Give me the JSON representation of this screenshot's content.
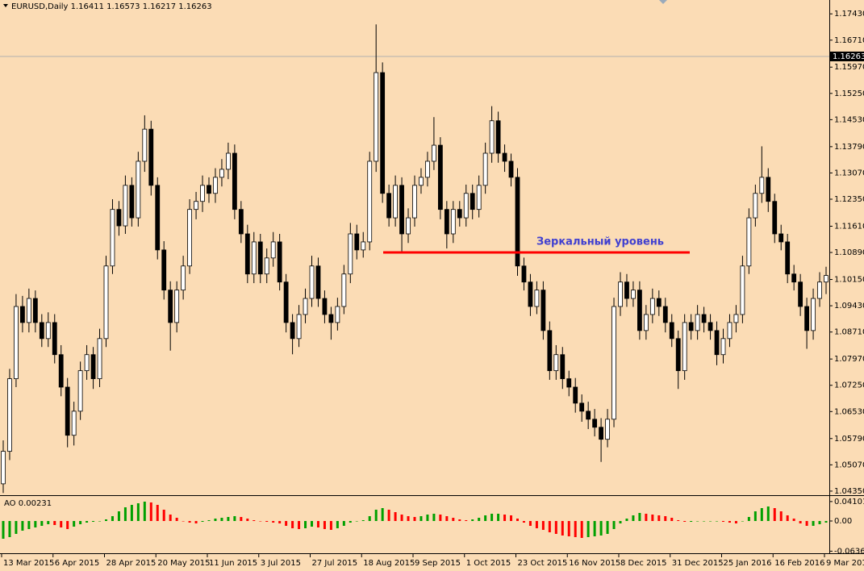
{
  "chart_data": {
    "type": "candlestick",
    "symbol": "EURUSD,Daily",
    "header_values": [
      1.16411,
      1.16573,
      1.16217,
      1.16263
    ],
    "current_price": 1.16263,
    "background": "#fbdcb5",
    "candle_color": "#000000",
    "bull_fill": "#ffffff",
    "ylim": [
      1.0426,
      1.1781
    ],
    "yticks": [
      {
        "value": 1.1743,
        "label": "1.17430"
      },
      {
        "value": 1.1671,
        "label": "1.16710"
      },
      {
        "value": 1.1597,
        "label": "1.15970"
      },
      {
        "value": 1.1525,
        "label": "1.15250"
      },
      {
        "value": 1.1453,
        "label": "1.14530"
      },
      {
        "value": 1.1379,
        "label": "1.13790"
      },
      {
        "value": 1.1307,
        "label": "1.13070"
      },
      {
        "value": 1.1235,
        "label": "1.12350"
      },
      {
        "value": 1.1161,
        "label": "1.11610"
      },
      {
        "value": 1.1089,
        "label": "1.10890"
      },
      {
        "value": 1.1015,
        "label": "1.10150"
      },
      {
        "value": 1.0943,
        "label": "1.09430"
      },
      {
        "value": 1.0871,
        "label": "1.08710"
      },
      {
        "value": 1.0797,
        "label": "1.07970"
      },
      {
        "value": 1.0725,
        "label": "1.07250"
      },
      {
        "value": 1.0653,
        "label": "1.06530"
      },
      {
        "value": 1.0579,
        "label": "1.05790"
      },
      {
        "value": 1.0507,
        "label": "1.05070"
      },
      {
        "value": 1.0435,
        "label": "1.04350"
      }
    ],
    "categories": [
      "13 Mar 2015",
      null,
      null,
      null,
      null,
      null,
      null,
      null,
      "6 Apr 2015",
      null,
      null,
      null,
      null,
      null,
      null,
      null,
      "28 Apr 2015",
      null,
      null,
      null,
      null,
      null,
      null,
      null,
      "20 May 2015",
      null,
      null,
      null,
      null,
      null,
      null,
      null,
      "11 Jun 2015",
      null,
      null,
      null,
      null,
      null,
      null,
      null,
      "3 Jul 2015",
      null,
      null,
      null,
      null,
      null,
      null,
      null,
      "27 Jul 2015",
      null,
      null,
      null,
      null,
      null,
      null,
      null,
      "18 Aug 2015",
      null,
      null,
      null,
      null,
      null,
      null,
      null,
      "9 Sep 2015",
      null,
      null,
      null,
      null,
      null,
      null,
      null,
      "1 Oct 2015",
      null,
      null,
      null,
      null,
      null,
      null,
      null,
      "23 Oct 2015",
      null,
      null,
      null,
      null,
      null,
      null,
      null,
      "16 Nov 2015",
      null,
      null,
      null,
      null,
      null,
      null,
      null,
      "8 Dec 2015",
      null,
      null,
      null,
      null,
      null,
      null,
      null,
      "31 Dec 2015",
      null,
      null,
      null,
      null,
      null,
      null,
      null,
      "25 Jan 2016",
      null,
      null,
      null,
      null,
      null,
      null,
      null,
      "16 Feb 2016",
      null,
      null,
      null,
      null,
      null,
      null,
      null,
      "9 Mar 2016"
    ],
    "candles": [
      [
        1.0455,
        1.0574,
        1.043,
        1.0544
      ],
      [
        1.0544,
        1.077,
        1.052,
        1.0743
      ],
      [
        1.0743,
        1.0975,
        1.072,
        1.0941
      ],
      [
        1.0941,
        1.097,
        1.087,
        1.0897
      ],
      [
        1.0897,
        1.099,
        1.087,
        1.0963
      ],
      [
        1.0963,
        1.0985,
        1.087,
        1.0897
      ],
      [
        1.0897,
        1.092,
        1.083,
        1.0853
      ],
      [
        1.0853,
        1.0925,
        1.083,
        1.0897
      ],
      [
        1.0897,
        1.092,
        1.0785,
        1.0809
      ],
      [
        1.0809,
        1.0835,
        1.0695,
        1.072
      ],
      [
        1.072,
        1.0745,
        1.0555,
        1.0588
      ],
      [
        1.0588,
        1.068,
        1.056,
        1.0654
      ],
      [
        1.0654,
        1.079,
        1.063,
        1.0765
      ],
      [
        1.0765,
        1.0835,
        1.074,
        1.0809
      ],
      [
        1.0809,
        1.083,
        1.0715,
        1.0743
      ],
      [
        1.0743,
        1.088,
        1.072,
        1.0853
      ],
      [
        1.0853,
        1.108,
        1.083,
        1.1052
      ],
      [
        1.1052,
        1.1235,
        1.103,
        1.1207
      ],
      [
        1.1207,
        1.123,
        1.1135,
        1.1162
      ],
      [
        1.1162,
        1.13,
        1.114,
        1.1273
      ],
      [
        1.1273,
        1.1295,
        1.116,
        1.1184
      ],
      [
        1.1184,
        1.1365,
        1.116,
        1.1339
      ],
      [
        1.1339,
        1.1465,
        1.131,
        1.1427
      ],
      [
        1.1427,
        1.145,
        1.1245,
        1.1273
      ],
      [
        1.1273,
        1.1295,
        1.107,
        1.1096
      ],
      [
        1.1096,
        1.112,
        1.096,
        1.0986
      ],
      [
        1.0986,
        1.101,
        1.082,
        1.0897
      ],
      [
        1.0897,
        1.101,
        1.087,
        1.0986
      ],
      [
        1.0986,
        1.108,
        1.096,
        1.1052
      ],
      [
        1.1052,
        1.1235,
        1.103,
        1.1207
      ],
      [
        1.1207,
        1.1255,
        1.118,
        1.1229
      ],
      [
        1.1229,
        1.13,
        1.12,
        1.1273
      ],
      [
        1.1273,
        1.1295,
        1.1225,
        1.1251
      ],
      [
        1.1251,
        1.132,
        1.1225,
        1.1295
      ],
      [
        1.1295,
        1.1345,
        1.127,
        1.1317
      ],
      [
        1.1317,
        1.139,
        1.129,
        1.1361
      ],
      [
        1.1361,
        1.1385,
        1.118,
        1.1207
      ],
      [
        1.1207,
        1.123,
        1.1115,
        1.114
      ],
      [
        1.114,
        1.1165,
        1.1005,
        1.103
      ],
      [
        1.103,
        1.1145,
        1.1005,
        1.1118
      ],
      [
        1.1118,
        1.114,
        1.1005,
        1.103
      ],
      [
        1.103,
        1.11,
        1.1005,
        1.1074
      ],
      [
        1.1074,
        1.1145,
        1.105,
        1.1118
      ],
      [
        1.1118,
        1.114,
        1.0985,
        1.1008
      ],
      [
        1.1008,
        1.103,
        1.087,
        1.0897
      ],
      [
        1.0897,
        1.092,
        1.081,
        1.0853
      ],
      [
        1.0853,
        1.0945,
        1.083,
        1.0919
      ],
      [
        1.0919,
        1.099,
        1.0895,
        1.0963
      ],
      [
        1.0963,
        1.108,
        1.094,
        1.1052
      ],
      [
        1.1052,
        1.1075,
        1.094,
        1.0963
      ],
      [
        1.0963,
        1.0985,
        1.0895,
        1.0919
      ],
      [
        1.0919,
        1.094,
        1.085,
        1.0897
      ],
      [
        1.0897,
        1.0965,
        1.0875,
        1.0941
      ],
      [
        1.0941,
        1.1055,
        1.092,
        1.103
      ],
      [
        1.103,
        1.117,
        1.1005,
        1.114
      ],
      [
        1.114,
        1.1165,
        1.107,
        1.1096
      ],
      [
        1.1096,
        1.1145,
        1.1075,
        1.1118
      ],
      [
        1.1118,
        1.1365,
        1.1095,
        1.1339
      ],
      [
        1.1339,
        1.1714,
        1.131,
        1.1582
      ],
      [
        1.1582,
        1.161,
        1.1225,
        1.1251
      ],
      [
        1.1251,
        1.1275,
        1.116,
        1.1184
      ],
      [
        1.1184,
        1.13,
        1.116,
        1.1273
      ],
      [
        1.1273,
        1.1295,
        1.109,
        1.114
      ],
      [
        1.114,
        1.121,
        1.1115,
        1.1184
      ],
      [
        1.1184,
        1.13,
        1.116,
        1.1273
      ],
      [
        1.1273,
        1.132,
        1.125,
        1.1295
      ],
      [
        1.1295,
        1.1365,
        1.127,
        1.1339
      ],
      [
        1.1339,
        1.146,
        1.1315,
        1.1383
      ],
      [
        1.1383,
        1.1405,
        1.118,
        1.1207
      ],
      [
        1.1207,
        1.123,
        1.11,
        1.114
      ],
      [
        1.114,
        1.123,
        1.1115,
        1.1207
      ],
      [
        1.1207,
        1.123,
        1.116,
        1.1184
      ],
      [
        1.1184,
        1.1275,
        1.116,
        1.1251
      ],
      [
        1.1251,
        1.1275,
        1.118,
        1.1207
      ],
      [
        1.1207,
        1.13,
        1.1185,
        1.1273
      ],
      [
        1.1273,
        1.139,
        1.125,
        1.1361
      ],
      [
        1.1361,
        1.149,
        1.1335,
        1.145
      ],
      [
        1.145,
        1.1475,
        1.1335,
        1.1361
      ],
      [
        1.1361,
        1.1385,
        1.131,
        1.1339
      ],
      [
        1.1339,
        1.136,
        1.127,
        1.1295
      ],
      [
        1.1295,
        1.132,
        1.1025,
        1.1052
      ],
      [
        1.1052,
        1.1075,
        1.0985,
        1.1008
      ],
      [
        1.1008,
        1.103,
        1.0915,
        1.0941
      ],
      [
        1.0941,
        1.101,
        1.092,
        1.0986
      ],
      [
        1.0986,
        1.101,
        1.085,
        1.0875
      ],
      [
        1.0875,
        1.09,
        1.074,
        1.0765
      ],
      [
        1.0765,
        1.0835,
        1.074,
        1.0809
      ],
      [
        1.0809,
        1.083,
        1.0715,
        1.0743
      ],
      [
        1.0743,
        1.0765,
        1.0695,
        1.072
      ],
      [
        1.072,
        1.0745,
        1.065,
        1.0676
      ],
      [
        1.0676,
        1.07,
        1.0625,
        1.0654
      ],
      [
        1.0654,
        1.068,
        1.0605,
        1.0632
      ],
      [
        1.0632,
        1.066,
        1.0585,
        1.061
      ],
      [
        1.061,
        1.0635,
        1.0515,
        1.0577
      ],
      [
        1.0577,
        1.066,
        1.0555,
        1.0632
      ],
      [
        1.0632,
        1.0965,
        1.061,
        1.0941
      ],
      [
        1.0941,
        1.1035,
        1.0915,
        1.1008
      ],
      [
        1.1008,
        1.103,
        1.094,
        1.0963
      ],
      [
        1.0963,
        1.101,
        1.094,
        1.0986
      ],
      [
        1.0986,
        1.101,
        1.085,
        1.0875
      ],
      [
        1.0875,
        1.0945,
        1.085,
        1.0919
      ],
      [
        1.0919,
        1.099,
        1.0895,
        1.0963
      ],
      [
        1.0963,
        1.0985,
        1.0915,
        1.0941
      ],
      [
        1.0941,
        1.0965,
        1.087,
        1.0897
      ],
      [
        1.0897,
        1.092,
        1.083,
        1.0853
      ],
      [
        1.0853,
        1.0875,
        1.0715,
        1.0765
      ],
      [
        1.0765,
        1.092,
        1.074,
        1.0897
      ],
      [
        1.0897,
        1.092,
        1.085,
        1.0875
      ],
      [
        1.0875,
        1.0945,
        1.085,
        1.0919
      ],
      [
        1.0919,
        1.094,
        1.087,
        1.0897
      ],
      [
        1.0897,
        1.092,
        1.085,
        1.0875
      ],
      [
        1.0875,
        1.09,
        1.078,
        1.0809
      ],
      [
        1.0809,
        1.088,
        1.0785,
        1.0853
      ],
      [
        1.0853,
        1.092,
        1.083,
        1.0897
      ],
      [
        1.0897,
        1.0945,
        1.087,
        1.0919
      ],
      [
        1.0919,
        1.108,
        1.0895,
        1.1052
      ],
      [
        1.1052,
        1.121,
        1.103,
        1.1184
      ],
      [
        1.1184,
        1.1275,
        1.116,
        1.1251
      ],
      [
        1.1251,
        1.138,
        1.1225,
        1.1295
      ],
      [
        1.1295,
        1.132,
        1.12,
        1.1229
      ],
      [
        1.1229,
        1.125,
        1.1115,
        1.114
      ],
      [
        1.114,
        1.1165,
        1.1095,
        1.1118
      ],
      [
        1.1118,
        1.114,
        1.1005,
        1.103
      ],
      [
        1.103,
        1.1055,
        1.0985,
        1.1008
      ],
      [
        1.1008,
        1.103,
        1.0915,
        1.0941
      ],
      [
        1.0941,
        1.0965,
        1.0825,
        1.0875
      ],
      [
        1.0875,
        1.099,
        1.085,
        1.0963
      ],
      [
        1.0963,
        1.1035,
        1.094,
        1.1008
      ],
      [
        1.1008,
        1.105,
        1.0975,
        1.1026
      ]
    ],
    "annotation": {
      "text": "Зеркальный уровень",
      "level": 1.1089,
      "color": "#ff0000",
      "text_color": "#4040d0"
    },
    "indicator": {
      "name": "AO",
      "value": 0.00231,
      "up_color": "#00a000",
      "down_color": "#ff0000",
      "ylim": [
        -0.068,
        0.051
      ],
      "yticks": [
        {
          "value": 0.04101,
          "label": "0.04101"
        },
        {
          "value": 0,
          "label": "0.00"
        },
        {
          "value": -0.06362,
          "label": "-0.06362"
        }
      ],
      "values": [
        -0.0374,
        -0.034,
        -0.0272,
        -0.0204,
        -0.017,
        -0.0136,
        -0.0102,
        -0.0068,
        -0.0085,
        -0.0136,
        -0.017,
        -0.0119,
        -0.0068,
        -0.0034,
        -0.0017,
        0,
        0.0034,
        0.0102,
        0.0204,
        0.0289,
        0.034,
        0.0374,
        0.0408,
        0.0391,
        0.034,
        0.0238,
        0.0136,
        0.0068,
        0,
        -0.0034,
        -0.0051,
        -0.0017,
        0.0017,
        0.0051,
        0.0068,
        0.0085,
        0.0102,
        0.0085,
        0.0051,
        0.0017,
        0,
        -0.0017,
        -0.0034,
        -0.0051,
        -0.0102,
        -0.0153,
        -0.017,
        -0.0153,
        -0.0119,
        -0.0136,
        -0.017,
        -0.0187,
        -0.0153,
        -0.0102,
        -0.0034,
        0,
        0.0017,
        0.0102,
        0.0238,
        0.0272,
        0.0238,
        0.0187,
        0.0136,
        0.0102,
        0.0085,
        0.0102,
        0.0136,
        0.0153,
        0.0136,
        0.0102,
        0.0068,
        0.0034,
        0.0017,
        0.0034,
        0.0068,
        0.0119,
        0.0153,
        0.0153,
        0.0136,
        0.0119,
        0.0051,
        -0.0034,
        -0.0102,
        -0.0153,
        -0.0187,
        -0.0238,
        -0.0272,
        -0.0306,
        -0.0323,
        -0.034,
        -0.0357,
        -0.034,
        -0.0323,
        -0.0306,
        -0.0272,
        -0.017,
        -0.0051,
        0.0051,
        0.0119,
        0.017,
        0.0153,
        0.0136,
        0.0119,
        0.0102,
        0.0068,
        0.0017,
        -0.0017,
        -0.0017,
        0,
        0,
        0,
        0,
        -0.0017,
        -0.0034,
        -0.0051,
        0,
        0.0085,
        0.0204,
        0.0272,
        0.0306,
        0.0272,
        0.0204,
        0.0119,
        0.0051,
        -0.0051,
        -0.0102,
        -0.0102,
        -0.0068,
        -0.0034
      ]
    }
  }
}
